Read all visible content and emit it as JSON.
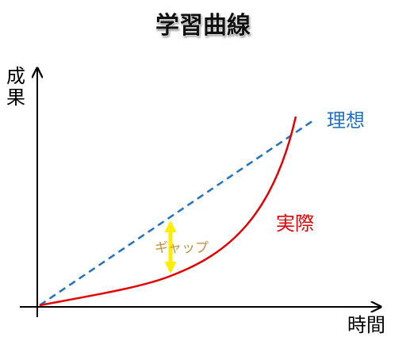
{
  "title": "学習曲線",
  "y_axis_label": "成果",
  "x_axis_label": "時間",
  "ideal_label": "理想",
  "actual_label": "実際",
  "gap_label": "ギャップ"
}
